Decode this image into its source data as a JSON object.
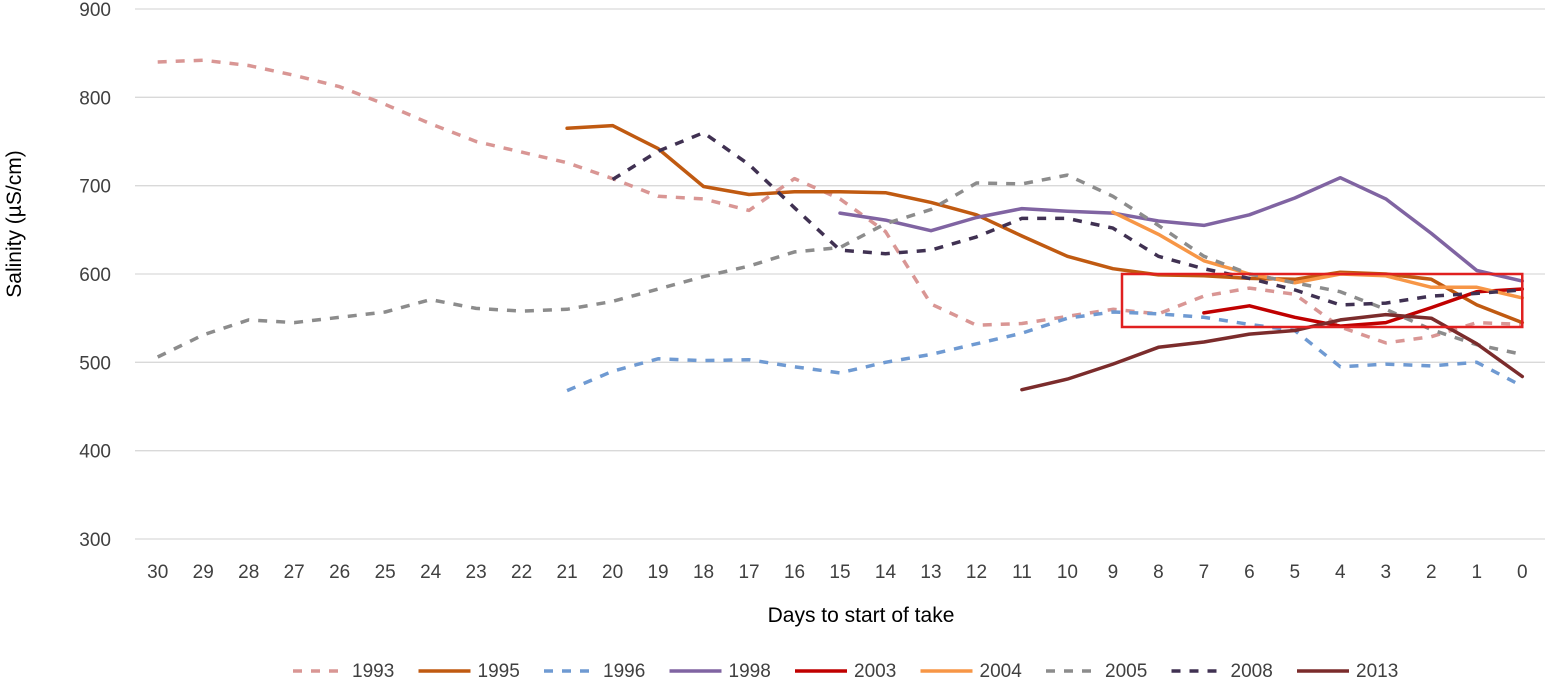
{
  "chart_data": {
    "type": "line",
    "title": "",
    "xlabel": "Days to start of take",
    "ylabel": "Salinity (µS/cm)",
    "ylim": [
      300,
      900
    ],
    "yticks": [
      300,
      400,
      500,
      600,
      700,
      800,
      900
    ],
    "x": [
      30,
      29,
      28,
      27,
      26,
      25,
      24,
      23,
      22,
      21,
      20,
      19,
      18,
      17,
      16,
      15,
      14,
      13,
      12,
      11,
      10,
      9,
      8,
      7,
      6,
      5,
      4,
      3,
      2,
      1,
      0
    ],
    "x_tick_labels": [
      "30",
      "29",
      "28",
      "27",
      "26",
      "25",
      "24",
      "23",
      "22",
      "21",
      "20",
      "19",
      "18",
      "17",
      "16",
      "15",
      "14",
      "13",
      "12",
      "11",
      "10",
      "9",
      "8",
      "7",
      "6",
      "5",
      "4",
      "3",
      "2",
      "1",
      "0"
    ],
    "grid": true,
    "legend_position": "bottom",
    "highlight_box": {
      "x_from": 8.8,
      "x_to": 0,
      "y_from": 540,
      "y_to": 600,
      "color": "#e02020"
    },
    "series": [
      {
        "name": "1993",
        "color": "#d99694",
        "dashed": true,
        "values": [
          840,
          842,
          836,
          825,
          812,
          792,
          770,
          750,
          738,
          726,
          708,
          688,
          685,
          672,
          708,
          685,
          648,
          566,
          542,
          544,
          552,
          560,
          555,
          575,
          584,
          577,
          540,
          522,
          529,
          545,
          543
        ]
      },
      {
        "name": "1995",
        "color": "#c05a11",
        "dashed": false,
        "values": [
          null,
          null,
          null,
          null,
          null,
          null,
          null,
          null,
          null,
          765,
          768,
          742,
          699,
          690,
          693,
          693,
          692,
          681,
          667,
          643,
          620,
          606,
          599,
          598,
          595,
          594,
          602,
          600,
          594,
          565,
          545
        ]
      },
      {
        "name": "1996",
        "color": "#6f9ad2",
        "dashed": true,
        "values": [
          null,
          null,
          null,
          null,
          null,
          null,
          null,
          null,
          null,
          468,
          490,
          504,
          502,
          503,
          495,
          488,
          500,
          509,
          521,
          533,
          550,
          557,
          555,
          551,
          543,
          536,
          495,
          498,
          496,
          500,
          473
        ]
      },
      {
        "name": "1998",
        "color": "#8064a2",
        "dashed": false,
        "values": [
          null,
          null,
          null,
          null,
          null,
          null,
          null,
          null,
          null,
          null,
          null,
          null,
          null,
          null,
          null,
          669,
          661,
          649,
          664,
          674,
          671,
          669,
          660,
          655,
          667,
          686,
          709,
          685,
          646,
          604,
          592
        ]
      },
      {
        "name": "2003",
        "color": "#c00000",
        "dashed": false,
        "values": [
          null,
          null,
          null,
          null,
          null,
          null,
          null,
          null,
          null,
          null,
          null,
          null,
          null,
          null,
          null,
          null,
          null,
          null,
          null,
          null,
          null,
          null,
          null,
          556,
          564,
          551,
          541,
          545,
          562,
          580,
          583
        ]
      },
      {
        "name": "2004",
        "color": "#f79646",
        "dashed": false,
        "values": [
          null,
          null,
          null,
          null,
          null,
          null,
          null,
          null,
          null,
          null,
          null,
          null,
          null,
          null,
          null,
          null,
          null,
          null,
          null,
          null,
          null,
          670,
          645,
          615,
          600,
          590,
          600,
          598,
          585,
          585,
          573
        ]
      },
      {
        "name": "2005",
        "color": "#8c8c8c",
        "dashed": true,
        "values": [
          506,
          531,
          548,
          545,
          551,
          557,
          571,
          561,
          558,
          560,
          569,
          583,
          597,
          609,
          625,
          630,
          657,
          673,
          703,
          702,
          712,
          688,
          655,
          620,
          600,
          590,
          580,
          560,
          537,
          520,
          509
        ]
      },
      {
        "name": "2008",
        "color": "#403152",
        "dashed": true,
        "values": [
          null,
          null,
          null,
          null,
          null,
          null,
          null,
          null,
          null,
          null,
          707,
          739,
          760,
          724,
          675,
          627,
          623,
          627,
          642,
          663,
          663,
          652,
          620,
          606,
          595,
          582,
          565,
          567,
          575,
          578,
          582
        ]
      },
      {
        "name": "2013",
        "color": "#7b2c2c",
        "dashed": false,
        "values": [
          null,
          null,
          null,
          null,
          null,
          null,
          null,
          null,
          null,
          null,
          null,
          null,
          null,
          null,
          null,
          null,
          null,
          null,
          null,
          469,
          481,
          498,
          517,
          523,
          532,
          536,
          548,
          554,
          550,
          521,
          484
        ]
      }
    ]
  }
}
